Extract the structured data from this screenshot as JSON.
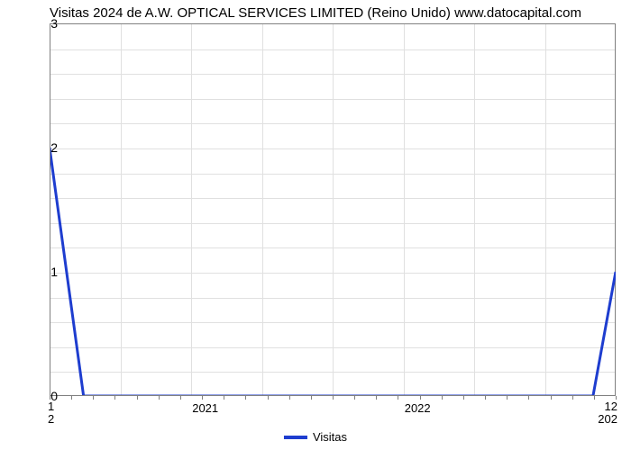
{
  "chart": {
    "type": "line",
    "title": "Visitas 2024 de A.W. OPTICAL SERVICES LIMITED (Reino Unido) www.datocapital.com",
    "title_fontsize": 15,
    "title_color": "#000000",
    "background_color": "#ffffff",
    "plot_background": "#ffffff",
    "grid_color": "#e0e0e0",
    "axis_color": "#808080",
    "series": {
      "name": "Visitas",
      "color": "#1e3dcf",
      "line_width": 3,
      "x": [
        0,
        0.06,
        0.96,
        1.0
      ],
      "y": [
        2,
        0,
        0,
        1
      ]
    },
    "y_axis": {
      "min": 0,
      "max": 3,
      "ticks": [
        0,
        1,
        2,
        3
      ],
      "tick_fontsize": 14,
      "n_h_gridlines": 15
    },
    "x_axis": {
      "major_ticks": [
        {
          "pos": 0.275,
          "label": "2021"
        },
        {
          "pos": 0.65,
          "label": "2022"
        }
      ],
      "left_edge_labels": [
        "1",
        "2"
      ],
      "right_edge_labels": [
        "12",
        "202"
      ],
      "n_minor_ticks": 26,
      "tick_fontsize": 13,
      "n_v_gridlines": 8
    },
    "legend": {
      "label": "Visitas",
      "swatch_color": "#1e3dcf",
      "fontsize": 13
    }
  }
}
